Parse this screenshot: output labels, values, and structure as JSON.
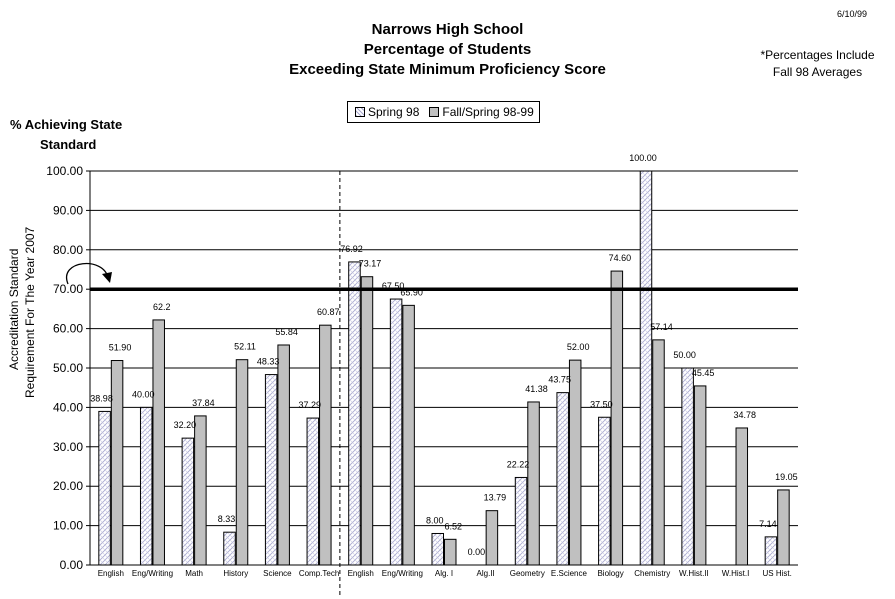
{
  "date": "6/10/99",
  "title": [
    "Narrows High School",
    "Percentage of Students",
    "Exceeding State Minimum Proficiency Score"
  ],
  "note": [
    "*Percentages  Include",
    "Fall 98 Averages"
  ],
  "ytitle": [
    "% Achieving State",
    "Standard"
  ],
  "yaxis_side_label": [
    "Accreditation Standard",
    "Requirement For The Year 2007"
  ],
  "colors": {
    "spring": "#ffffff",
    "spring_hatch": "#a8a8d0",
    "fall": "#c0c0c0",
    "standard_line": "#000000"
  },
  "chart_data": {
    "type": "bar",
    "categories": [
      "English",
      "Eng/Writing",
      "Math",
      "History",
      "Science",
      "Comp.Tech",
      "English",
      "Eng/Writing",
      "Alg. I",
      "Alg.II",
      "Geometry",
      "E.Science",
      "Biology",
      "Chemistry",
      "W.Hist.II",
      "W.Hist.I",
      "US Hist."
    ],
    "series": [
      {
        "name": "Spring 98",
        "values": [
          38.98,
          40.0,
          32.2,
          8.33,
          48.33,
          37.29,
          76.92,
          67.5,
          8.0,
          0.0,
          22.22,
          43.75,
          37.5,
          100.0,
          50.0,
          null,
          7.14
        ],
        "labels": [
          "38.98",
          "40.00",
          "32.20",
          "8.33",
          "48.33",
          "37.29",
          "76.92",
          "67.50",
          "8.00",
          "0.00",
          "22.22",
          "43.75",
          "37.50",
          "100.00",
          "50.00",
          "",
          "7.14"
        ]
      },
      {
        "name": "Fall/Spring 98-99",
        "values": [
          51.9,
          62.2,
          37.84,
          52.11,
          55.84,
          60.87,
          73.17,
          65.9,
          6.52,
          13.79,
          41.38,
          52.0,
          74.6,
          57.14,
          45.45,
          34.78,
          19.05
        ],
        "labels": [
          "51.90",
          "62.2",
          "37.84",
          "52.11",
          "55.84",
          "60.87",
          "73.17",
          "65.90",
          "6.52",
          "13.79",
          "41.38",
          "52.00",
          "74.60",
          "57.14",
          "45.45",
          "34.78",
          "19.05"
        ]
      }
    ],
    "yticks": [
      "0.00",
      "10.00",
      "20.00",
      "30.00",
      "40.00",
      "50.00",
      "60.00",
      "70.00",
      "80.00",
      "90.00",
      "100.00"
    ],
    "ylim": [
      0,
      100
    ],
    "standard_value": 70,
    "grid": true,
    "legend_position": "top-center"
  }
}
